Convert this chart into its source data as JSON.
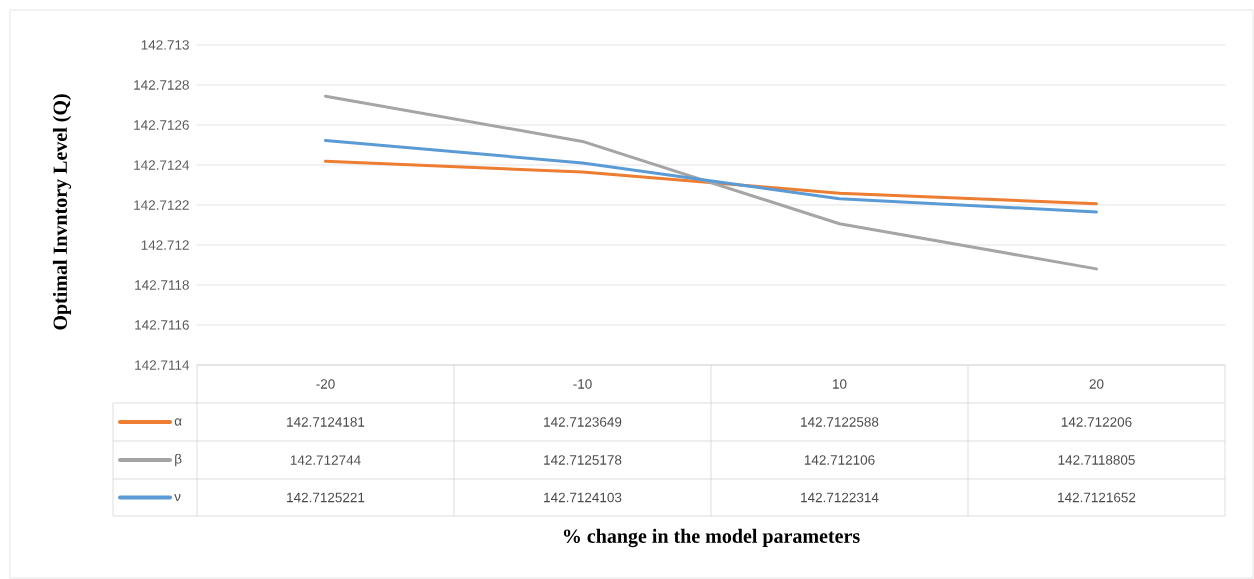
{
  "chart_data": {
    "type": "line",
    "annotations": [
      "% change in the model parameters"
    ],
    "ylabel": "Optimal Invntory Level (Q)",
    "categories": [
      "-20",
      "-10",
      "10",
      "20"
    ],
    "series": [
      {
        "name": "α",
        "color": "#ed7d31",
        "values": [
          142.7124181,
          142.7123649,
          142.7122588,
          142.712206
        ]
      },
      {
        "name": "β",
        "color": "#a5a5a5",
        "values": [
          142.712744,
          142.7125178,
          142.712106,
          142.7118805
        ]
      },
      {
        "name": "ν",
        "color": "#5b9bd5",
        "values": [
          142.7125221,
          142.7124103,
          142.7122314,
          142.7121652
        ]
      }
    ],
    "ylim": [
      142.7114,
      142.713
    ],
    "yticks": [
      142.7114,
      142.7116,
      142.7118,
      142.712,
      142.7122,
      142.7124,
      142.7126,
      142.7128,
      142.713
    ],
    "grid": "y",
    "legend": "bottom",
    "data_labels": true,
    "marker": "none",
    "line_style": "solid"
  }
}
